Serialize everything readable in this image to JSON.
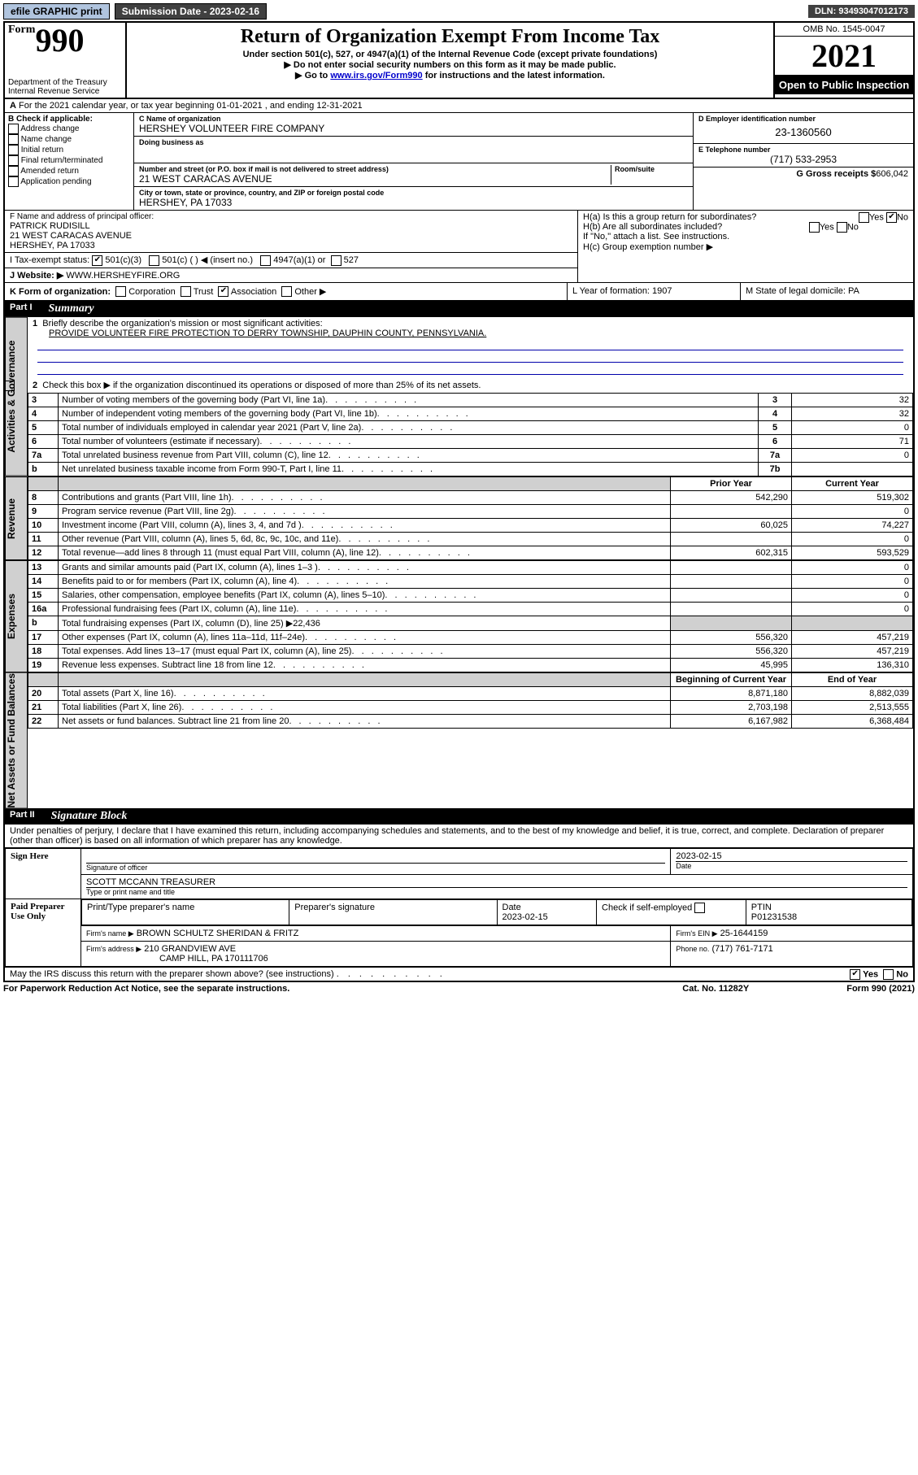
{
  "topbar": {
    "efile": "efile GRAPHIC print",
    "submission_label": "Submission Date - 2023-02-16",
    "dln": "DLN: 93493047012173"
  },
  "header": {
    "form_prefix": "Form",
    "form_number": "990",
    "title": "Return of Organization Exempt From Income Tax",
    "subtitle": "Under section 501(c), 527, or 4947(a)(1) of the Internal Revenue Code (except private foundations)",
    "note1": "▶ Do not enter social security numbers on this form as it may be made public.",
    "note2_pre": "▶ Go to ",
    "note2_link": "www.irs.gov/Form990",
    "note2_post": " for instructions and the latest information.",
    "dept": "Department of the Treasury",
    "irs": "Internal Revenue Service",
    "omb": "OMB No. 1545-0047",
    "year": "2021",
    "open": "Open to Public Inspection"
  },
  "line_a": {
    "text": "For the 2021 calendar year, or tax year beginning 01-01-2021    , and ending 12-31-2021",
    "prefix": "A"
  },
  "col_b": {
    "label": "B Check if applicable:",
    "items": [
      "Address change",
      "Name change",
      "Initial return",
      "Final return/terminated",
      "Amended return",
      "Application pending"
    ]
  },
  "col_c": {
    "name_label": "C Name of organization",
    "name": "HERSHEY VOLUNTEER FIRE COMPANY",
    "dba_label": "Doing business as",
    "dba": "",
    "street_label": "Number and street (or P.O. box if mail is not delivered to street address)",
    "room_label": "Room/suite",
    "street": "21 WEST CARACAS AVENUE",
    "city_label": "City or town, state or province, country, and ZIP or foreign postal code",
    "city": "HERSHEY, PA  17033"
  },
  "col_d": {
    "ein_label": "D Employer identification number",
    "ein": "23-1360560",
    "phone_label": "E Telephone number",
    "phone": "(717) 533-2953",
    "gross_label": "G Gross receipts $",
    "gross": "606,042"
  },
  "officer": {
    "label": "F  Name and address of principal officer:",
    "name": "PATRICK RUDISILL",
    "street": "21 WEST CARACAS AVENUE",
    "city": "HERSHEY, PA  17033"
  },
  "h_block": {
    "ha": "H(a)  Is this a group return for subordinates?",
    "hb": "H(b)  Are all subordinates included?",
    "note": "If \"No,\" attach a list. See instructions.",
    "hc": "H(c)  Group exemption number ▶",
    "yes": "Yes",
    "no": "No"
  },
  "tax_status": {
    "label": "I    Tax-exempt status:",
    "opt1": "501(c)(3)",
    "opt2": "501(c) (  ) ◀ (insert no.)",
    "opt3": "4947(a)(1) or",
    "opt4": "527"
  },
  "website": {
    "label": "J    Website: ▶",
    "value": "WWW.HERSHEYFIRE.ORG"
  },
  "k_line": {
    "label": "K Form of organization:",
    "opts": [
      "Corporation",
      "Trust",
      "Association",
      "Other ▶"
    ],
    "checked_index": 2
  },
  "l_m": {
    "l": "L Year of formation: 1907",
    "m": "M State of legal domicile: PA"
  },
  "part1": {
    "label": "Part I",
    "title": "Summary",
    "tab_gov": "Activities & Governance",
    "tab_rev": "Revenue",
    "tab_exp": "Expenses",
    "tab_net": "Net Assets or Fund Balances",
    "q1": "Briefly describe the organization's mission or most significant activities:",
    "mission": "PROVIDE VOLUNTEER FIRE PROTECTION TO DERRY TOWNSHIP, DAUPHIN COUNTY, PENNSYLVANIA.",
    "q2": "Check this box ▶           if the organization discontinued its operations or disposed of more than 25% of its net assets.",
    "rows_gov": [
      {
        "n": "3",
        "d": "Number of voting members of the governing body (Part VI, line 1a)",
        "c": "3",
        "v": "32"
      },
      {
        "n": "4",
        "d": "Number of independent voting members of the governing body (Part VI, line 1b)",
        "c": "4",
        "v": "32"
      },
      {
        "n": "5",
        "d": "Total number of individuals employed in calendar year 2021 (Part V, line 2a)",
        "c": "5",
        "v": "0"
      },
      {
        "n": "6",
        "d": "Total number of volunteers (estimate if necessary)",
        "c": "6",
        "v": "71"
      },
      {
        "n": "7a",
        "d": "Total unrelated business revenue from Part VIII, column (C), line 12",
        "c": "7a",
        "v": "0"
      },
      {
        "n": "b",
        "d": "Net unrelated business taxable income from Form 990-T, Part I, line 11",
        "c": "7b",
        "v": ""
      }
    ],
    "col_headers": {
      "prior": "Prior Year",
      "current": "Current Year"
    },
    "rows_rev": [
      {
        "n": "8",
        "d": "Contributions and grants (Part VIII, line 1h)",
        "p": "542,290",
        "c": "519,302"
      },
      {
        "n": "9",
        "d": "Program service revenue (Part VIII, line 2g)",
        "p": "",
        "c": "0"
      },
      {
        "n": "10",
        "d": "Investment income (Part VIII, column (A), lines 3, 4, and 7d )",
        "p": "60,025",
        "c": "74,227"
      },
      {
        "n": "11",
        "d": "Other revenue (Part VIII, column (A), lines 5, 6d, 8c, 9c, 10c, and 11e)",
        "p": "",
        "c": "0"
      },
      {
        "n": "12",
        "d": "Total revenue—add lines 8 through 11 (must equal Part VIII, column (A), line 12)",
        "p": "602,315",
        "c": "593,529"
      }
    ],
    "rows_exp": [
      {
        "n": "13",
        "d": "Grants and similar amounts paid (Part IX, column (A), lines 1–3 )",
        "p": "",
        "c": "0"
      },
      {
        "n": "14",
        "d": "Benefits paid to or for members (Part IX, column (A), line 4)",
        "p": "",
        "c": "0"
      },
      {
        "n": "15",
        "d": "Salaries, other compensation, employee benefits (Part IX, column (A), lines 5–10)",
        "p": "",
        "c": "0"
      },
      {
        "n": "16a",
        "d": "Professional fundraising fees (Part IX, column (A), line 11e)",
        "p": "",
        "c": "0"
      },
      {
        "n": "b",
        "d": "Total fundraising expenses (Part IX, column (D), line 25) ▶22,436",
        "shade": true
      },
      {
        "n": "17",
        "d": "Other expenses (Part IX, column (A), lines 11a–11d, 11f–24e)",
        "p": "556,320",
        "c": "457,219"
      },
      {
        "n": "18",
        "d": "Total expenses. Add lines 13–17 (must equal Part IX, column (A), line 25)",
        "p": "556,320",
        "c": "457,219"
      },
      {
        "n": "19",
        "d": "Revenue less expenses. Subtract line 18 from line 12",
        "p": "45,995",
        "c": "136,310"
      }
    ],
    "net_headers": {
      "begin": "Beginning of Current Year",
      "end": "End of Year"
    },
    "rows_net": [
      {
        "n": "20",
        "d": "Total assets (Part X, line 16)",
        "p": "8,871,180",
        "c": "8,882,039"
      },
      {
        "n": "21",
        "d": "Total liabilities (Part X, line 26)",
        "p": "2,703,198",
        "c": "2,513,555"
      },
      {
        "n": "22",
        "d": "Net assets or fund balances. Subtract line 21 from line 20",
        "p": "6,167,982",
        "c": "6,368,484"
      }
    ]
  },
  "part2": {
    "label": "Part II",
    "title": "Signature Block",
    "declaration": "Under penalties of perjury, I declare that I have examined this return, including accompanying schedules and statements, and to the best of my knowledge and belief, it is true, correct, and complete. Declaration of preparer (other than officer) is based on all information of which preparer has any knowledge.",
    "sign_here": "Sign Here",
    "sig_officer": "Signature of officer",
    "date": "Date",
    "sig_date": "2023-02-15",
    "officer_name": "SCOTT MCCANN TREASURER",
    "type_name": "Type or print name and title",
    "paid": "Paid Preparer Use Only",
    "print_name": "Print/Type preparer's name",
    "prep_sig": "Preparer's signature",
    "prep_date_label": "Date",
    "prep_date": "2023-02-15",
    "check_self": "Check          if self-employed",
    "ptin_label": "PTIN",
    "ptin": "P01231538",
    "firm_name_label": "Firm's name    ▶",
    "firm_name": "BROWN SCHULTZ SHERIDAN & FRITZ",
    "firm_ein_label": "Firm's EIN ▶",
    "firm_ein": "25-1644159",
    "firm_addr_label": "Firm's address ▶",
    "firm_addr1": "210 GRANDVIEW AVE",
    "firm_addr2": "CAMP HILL, PA  170111706",
    "firm_phone_label": "Phone no.",
    "firm_phone": "(717) 761-7171",
    "discuss": "May the IRS discuss this return with the preparer shown above? (see instructions)",
    "yes": "Yes",
    "no": "No"
  },
  "footer": {
    "left": "For Paperwork Reduction Act Notice, see the separate instructions.",
    "mid": "Cat. No. 11282Y",
    "right": "Form 990 (2021)"
  }
}
